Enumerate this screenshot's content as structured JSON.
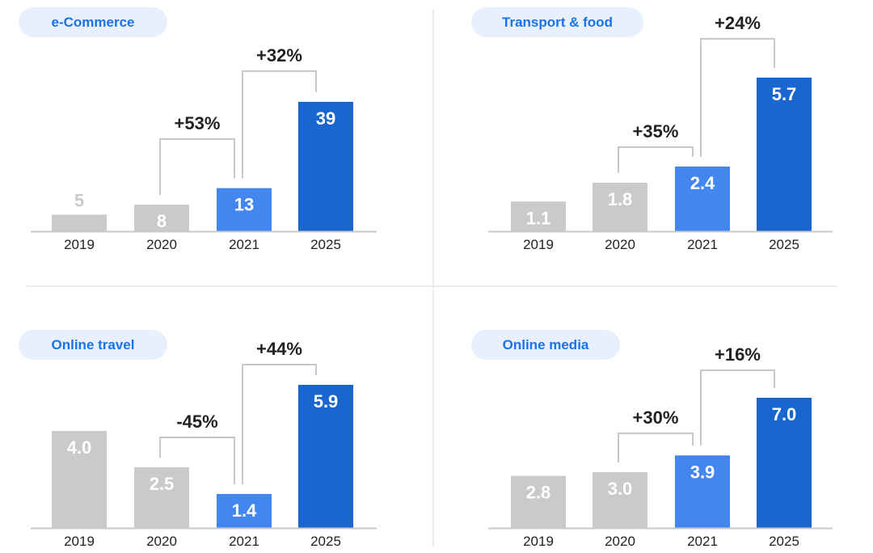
{
  "colors": {
    "bar_grey": "#cacaca",
    "bar_light_blue": "#4386f0",
    "bar_dark_blue": "#1967ce",
    "pill_bg": "#e8f0fe",
    "pill_text": "#1a73e8",
    "bracket": "#c9c9c9",
    "label_dark": "#222222",
    "label_light": "#ffffff",
    "label_grey_outside": "#cacaca",
    "axis": "#c9c9c9"
  },
  "chart_data": [
    {
      "type": "bar",
      "title": "e-Commerce",
      "categories": [
        "2019",
        "2020",
        "2021",
        "2025"
      ],
      "values": [
        5,
        8,
        13,
        39
      ],
      "value_labels": [
        "5",
        "8",
        "13",
        "39"
      ],
      "bar_colors": [
        "grey",
        "grey",
        "light_blue",
        "dark_blue"
      ],
      "growth": [
        {
          "from": "2020",
          "to": "2021",
          "label": "+53%"
        },
        {
          "from": "2021",
          "to": "2025",
          "label": "+32%"
        }
      ]
    },
    {
      "type": "bar",
      "title": "Transport & food",
      "categories": [
        "2019",
        "2020",
        "2021",
        "2025"
      ],
      "values": [
        1.1,
        1.8,
        2.4,
        5.7
      ],
      "value_labels": [
        "1.1",
        "1.8",
        "2.4",
        "5.7"
      ],
      "bar_colors": [
        "grey",
        "grey",
        "light_blue",
        "dark_blue"
      ],
      "growth": [
        {
          "from": "2020",
          "to": "2021",
          "label": "+35%"
        },
        {
          "from": "2021",
          "to": "2025",
          "label": "+24%"
        }
      ]
    },
    {
      "type": "bar",
      "title": "Online travel",
      "categories": [
        "2019",
        "2020",
        "2021",
        "2025"
      ],
      "values": [
        4.0,
        2.5,
        1.4,
        5.9
      ],
      "value_labels": [
        "4.0",
        "2.5",
        "1.4",
        "5.9"
      ],
      "bar_colors": [
        "grey",
        "grey",
        "light_blue",
        "dark_blue"
      ],
      "growth": [
        {
          "from": "2020",
          "to": "2021",
          "label": "-45%"
        },
        {
          "from": "2021",
          "to": "2025",
          "label": "+44%"
        }
      ]
    },
    {
      "type": "bar",
      "title": "Online media",
      "categories": [
        "2019",
        "2020",
        "2021",
        "2025"
      ],
      "values": [
        2.8,
        3.0,
        3.9,
        7.0
      ],
      "value_labels": [
        "2.8",
        "3.0",
        "3.9",
        "7.0"
      ],
      "bar_colors": [
        "grey",
        "grey",
        "light_blue",
        "dark_blue"
      ],
      "growth": [
        {
          "from": "2020",
          "to": "2021",
          "label": "+30%"
        },
        {
          "from": "2021",
          "to": "2025",
          "label": "+16%"
        }
      ]
    }
  ]
}
